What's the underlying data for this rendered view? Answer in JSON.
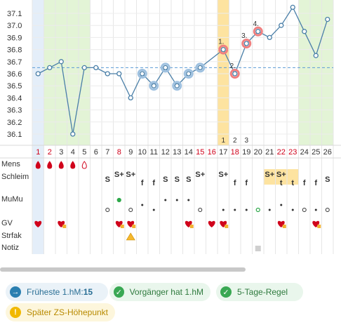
{
  "chart_data": {
    "type": "line",
    "title": "",
    "ylabel": "",
    "xlabel": "",
    "y_ticks": [
      36.1,
      36.2,
      36.3,
      36.4,
      36.5,
      36.6,
      36.7,
      36.8,
      36.9,
      37.0,
      37.1
    ],
    "ylim": [
      36.0,
      37.2
    ],
    "coverline": 36.65,
    "days": [
      1,
      2,
      3,
      4,
      5,
      6,
      7,
      8,
      9,
      10,
      11,
      12,
      13,
      14,
      15,
      16,
      17,
      18,
      19,
      20,
      21,
      22,
      23,
      24,
      25,
      26
    ],
    "red_days": [
      1,
      2,
      8,
      15,
      16,
      18,
      22,
      23
    ],
    "temps": [
      36.6,
      36.65,
      36.7,
      36.1,
      36.65,
      36.65,
      36.6,
      36.6,
      36.4,
      36.6,
      36.5,
      36.65,
      36.5,
      36.6,
      36.65,
      null,
      36.8,
      36.6,
      36.85,
      36.95,
      36.9,
      37.0,
      37.15,
      36.95,
      36.75,
      37.05
    ],
    "excluded_days": [
      10,
      11,
      12,
      13,
      14,
      15
    ],
    "marked_days": [
      17,
      18,
      19,
      20
    ],
    "point_labels": [
      {
        "day": 17,
        "text": "1."
      },
      {
        "day": 18,
        "text": "2."
      },
      {
        "day": 19,
        "text": "3."
      },
      {
        "day": 20,
        "text": "4."
      }
    ],
    "highlight_days": [
      {
        "day": 17,
        "label": "1"
      },
      {
        "day": 18,
        "label": "2"
      },
      {
        "day": 19,
        "label": "3"
      }
    ],
    "grid": true
  },
  "rows": {
    "labels": [
      "Mens",
      "Schleim",
      "MuMu",
      "GV",
      "Strfak",
      "Notiz"
    ],
    "mens": [
      {
        "day": 1,
        "type": "heavy"
      },
      {
        "day": 2,
        "type": "heavy"
      },
      {
        "day": 3,
        "type": "medium"
      },
      {
        "day": 4,
        "type": "medium"
      },
      {
        "day": 5,
        "type": "outline"
      }
    ],
    "schleim": [
      {
        "day": 7,
        "text": "S"
      },
      {
        "day": 8,
        "text": "S+"
      },
      {
        "day": 9,
        "text": "S+"
      },
      {
        "day": 10,
        "text": "f"
      },
      {
        "day": 11,
        "text": "f"
      },
      {
        "day": 12,
        "text": "S"
      },
      {
        "day": 13,
        "text": "S"
      },
      {
        "day": 14,
        "text": "S"
      },
      {
        "day": 15,
        "text": "S+"
      },
      {
        "day": 17,
        "text": "S+"
      },
      {
        "day": 18,
        "text": "f"
      },
      {
        "day": 19,
        "text": "f"
      },
      {
        "day": 21,
        "text": "S+"
      },
      {
        "day": 22,
        "text": "S+"
      },
      {
        "day": 22,
        "text": "t"
      },
      {
        "day": 23,
        "text": "t"
      },
      {
        "day": 24,
        "text": "f"
      },
      {
        "day": 25,
        "text": "f"
      },
      {
        "day": 26,
        "text": "S"
      }
    ],
    "gv_days": [
      1,
      3,
      8,
      9,
      14,
      16,
      17,
      22,
      25
    ],
    "gv_locked": [
      3,
      8,
      9,
      14,
      17,
      22,
      25
    ],
    "strfak_days": [
      9
    ],
    "notiz_days": [
      20
    ]
  },
  "pills": [
    {
      "icon": "→",
      "text": "Früheste 1.hM: ",
      "value": "15",
      "style": "blue"
    },
    {
      "icon": "✓",
      "text": "Vorgänger hat 1.hM",
      "value": "",
      "style": "green"
    },
    {
      "icon": "✓",
      "text": "5-Tage-Regel",
      "value": "",
      "style": "green"
    },
    {
      "icon": "!",
      "text": "Später ZS-Höhepunkt",
      "value": "",
      "style": "yellow"
    }
  ],
  "colors": {
    "line": "#4a7fa8",
    "coverline": "#5b9bd5",
    "red": "#d0021b",
    "green_zone": "#e3f4d6",
    "blue_zone": "#e4eef9",
    "orange_zone": "#fde3a0",
    "marker_red": "#f08080",
    "marker_blue": "#9fc1e0"
  }
}
